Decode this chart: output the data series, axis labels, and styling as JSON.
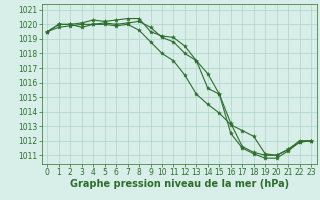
{
  "bg_color": "#d8eee8",
  "grid_color": "#b0d4c8",
  "line_color": "#2d6e2d",
  "marker_color": "#2d6e2d",
  "xlabel": "Graphe pression niveau de la mer (hPa)",
  "xlabel_fontsize": 7,
  "ylim": [
    1010.4,
    1021.4
  ],
  "xlim": [
    -0.5,
    23.5
  ],
  "yticks": [
    1011,
    1012,
    1013,
    1014,
    1015,
    1016,
    1017,
    1018,
    1019,
    1020,
    1021
  ],
  "xticks": [
    0,
    1,
    2,
    3,
    4,
    5,
    6,
    7,
    8,
    9,
    10,
    11,
    12,
    13,
    14,
    15,
    16,
    17,
    18,
    19,
    20,
    21,
    22,
    23
  ],
  "tick_fontsize": 5.5,
  "series": [
    [
      1019.5,
      1020.0,
      1020.0,
      1020.1,
      1020.3,
      1020.2,
      1020.3,
      1020.4,
      1020.4,
      1019.5,
      1019.2,
      1019.1,
      1018.5,
      1017.5,
      1016.6,
      1015.2,
      1012.5,
      1011.5,
      1011.1,
      1010.8,
      1010.8,
      1011.3,
      1011.9,
      1012.0
    ],
    [
      1019.5,
      1020.0,
      1020.0,
      1019.8,
      1020.0,
      1020.1,
      1020.0,
      1020.1,
      1020.2,
      1019.8,
      1019.1,
      1018.8,
      1018.0,
      1017.5,
      1015.6,
      1015.2,
      1013.2,
      1011.6,
      1011.2,
      1011.0,
      1011.0,
      1011.4,
      1012.0,
      1012.0
    ],
    [
      1019.5,
      1019.8,
      1019.9,
      1020.0,
      1020.0,
      1020.0,
      1019.9,
      1020.0,
      1019.6,
      1018.8,
      1018.0,
      1017.5,
      1016.5,
      1015.2,
      1014.5,
      1013.9,
      1013.1,
      1012.7,
      1012.3,
      1011.1,
      1011.0,
      1011.4,
      1011.9,
      1012.0
    ]
  ]
}
